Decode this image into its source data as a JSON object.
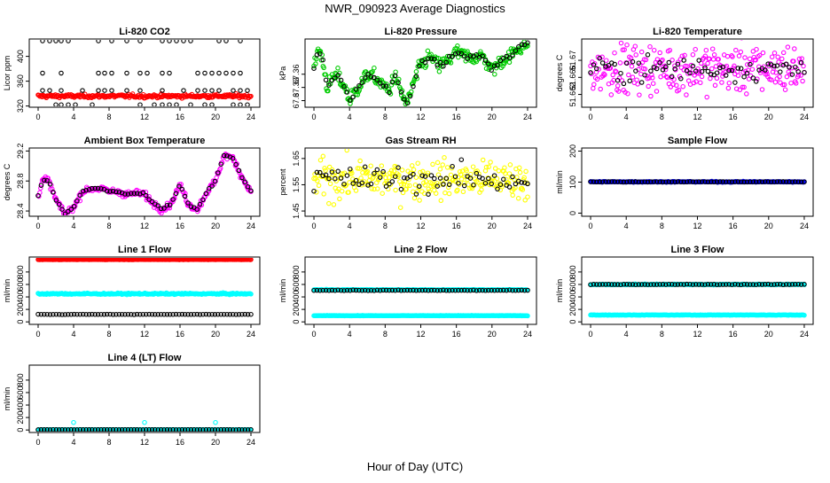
{
  "title": "NWR_090923  Average Diagnostics",
  "xlabel": "Hour of Day (UTC)",
  "x_ticks": [
    0,
    4,
    8,
    12,
    16,
    20,
    24
  ],
  "colors": {
    "black": "#000000",
    "red": "#ff0000",
    "green": "#00cc00",
    "magenta": "#ff00ff",
    "yellow": "#ffff00",
    "blue": "#0000ff",
    "cyan": "#00ffff"
  },
  "chart_data": [
    {
      "type": "scatter",
      "title": "Li-820 CO2",
      "ylabel": "Licor ppm",
      "ylim": [
        318,
        428
      ],
      "yticks": [
        320,
        360,
        400
      ],
      "series": [
        {
          "name": "raw",
          "color": "#ff0000",
          "pattern": "band",
          "center": 336,
          "spread": 2
        },
        {
          "name": "avg-low",
          "color": "#000000",
          "pattern": "grid",
          "levels": [
            322,
            345,
            373,
            425
          ],
          "x": [
            0.5,
            1.3,
            2.0,
            2.6,
            3.4,
            4.2,
            5.0,
            6.1,
            6.8,
            7.5,
            8.3,
            9.1,
            10.0,
            10.7,
            11.5,
            12.3,
            13.1,
            14.0,
            14.8,
            15.6,
            16.4,
            17.2,
            18.0,
            18.8,
            19.6,
            20.4,
            21.2,
            22.0,
            22.8,
            23.6
          ]
        }
      ]
    },
    {
      "type": "scatter",
      "title": "Li-820 Pressure",
      "ylabel": "kPa",
      "ylim": [
        67.285,
        67.44
      ],
      "yticks": [
        67.3,
        67.33,
        67.36
      ],
      "series": [
        {
          "name": "raw",
          "color": "#00cc00",
          "profile": [
            [
              0,
              67.37
            ],
            [
              0.5,
              67.42
            ],
            [
              1,
              67.39
            ],
            [
              1.5,
              67.33
            ],
            [
              2.5,
              67.36
            ],
            [
              3.5,
              67.33
            ],
            [
              4,
              67.3
            ],
            [
              5,
              67.33
            ],
            [
              6,
              67.36
            ],
            [
              7,
              67.35
            ],
            [
              8,
              67.33
            ],
            [
              8.5,
              67.32
            ],
            [
              9,
              67.36
            ],
            [
              10,
              67.31
            ],
            [
              10.5,
              67.29
            ],
            [
              11,
              67.33
            ],
            [
              12,
              67.38
            ],
            [
              13,
              67.4
            ],
            [
              14,
              67.38
            ],
            [
              15,
              67.39
            ],
            [
              16,
              67.41
            ],
            [
              17,
              67.4
            ],
            [
              18,
              67.4
            ],
            [
              19,
              67.4
            ],
            [
              20,
              67.37
            ],
            [
              21,
              67.39
            ],
            [
              22,
              67.4
            ],
            [
              23,
              67.42
            ],
            [
              24,
              67.43
            ]
          ],
          "noise": 0.012
        },
        {
          "name": "avg",
          "color": "#000000",
          "profile": [
            [
              0,
              67.37
            ],
            [
              0.5,
              67.42
            ],
            [
              1,
              67.39
            ],
            [
              1.5,
              67.33
            ],
            [
              2.5,
              67.36
            ],
            [
              3.5,
              67.33
            ],
            [
              4,
              67.3
            ],
            [
              5,
              67.33
            ],
            [
              6,
              67.36
            ],
            [
              7,
              67.35
            ],
            [
              8,
              67.33
            ],
            [
              8.5,
              67.32
            ],
            [
              9,
              67.36
            ],
            [
              10,
              67.31
            ],
            [
              10.5,
              67.29
            ],
            [
              11,
              67.33
            ],
            [
              12,
              67.38
            ],
            [
              13,
              67.4
            ],
            [
              14,
              67.38
            ],
            [
              15,
              67.39
            ],
            [
              16,
              67.41
            ],
            [
              17,
              67.4
            ],
            [
              18,
              67.4
            ],
            [
              19,
              67.4
            ],
            [
              20,
              67.37
            ],
            [
              21,
              67.39
            ],
            [
              22,
              67.4
            ],
            [
              23,
              67.42
            ],
            [
              24,
              67.43
            ]
          ],
          "noise": 0.004
        }
      ]
    },
    {
      "type": "scatter",
      "title": "Li-820 Temperature",
      "ylabel": "degrees C",
      "ylim": [
        51.659,
        51.675
      ],
      "yticks": [
        51.662,
        51.666,
        51.67
      ],
      "series": [
        {
          "name": "raw",
          "color": "#ff00ff",
          "center": 51.668,
          "noise": 0.004
        },
        {
          "name": "avg",
          "color": "#000000",
          "center": 51.668,
          "noise": 0.002
        }
      ]
    },
    {
      "type": "scatter",
      "title": "Ambient Box Temperature",
      "ylabel": "degrees C",
      "ylim": [
        28.33,
        29.24
      ],
      "yticks": [
        28.4,
        28.8,
        29.2
      ],
      "series": [
        {
          "name": "raw",
          "color": "#ff00ff",
          "profile": [
            [
              0,
              28.6
            ],
            [
              0.5,
              28.82
            ],
            [
              1.2,
              28.8
            ],
            [
              2,
              28.55
            ],
            [
              3,
              28.36
            ],
            [
              4,
              28.45
            ],
            [
              5,
              28.66
            ],
            [
              6,
              28.7
            ],
            [
              7,
              28.7
            ],
            [
              8,
              28.66
            ],
            [
              9,
              28.66
            ],
            [
              10,
              28.62
            ],
            [
              11,
              28.64
            ],
            [
              12,
              28.62
            ],
            [
              13,
              28.5
            ],
            [
              14,
              28.42
            ],
            [
              15,
              28.5
            ],
            [
              16,
              28.75
            ],
            [
              17,
              28.48
            ],
            [
              18,
              28.42
            ],
            [
              19,
              28.65
            ],
            [
              20,
              28.8
            ],
            [
              21,
              29.15
            ],
            [
              22,
              29.1
            ],
            [
              23,
              28.85
            ],
            [
              24,
              28.65
            ]
          ],
          "noise": 0.03
        },
        {
          "name": "avg",
          "color": "#000000",
          "profile": [
            [
              0,
              28.6
            ],
            [
              0.5,
              28.82
            ],
            [
              1.2,
              28.8
            ],
            [
              2,
              28.55
            ],
            [
              3,
              28.36
            ],
            [
              4,
              28.45
            ],
            [
              5,
              28.66
            ],
            [
              6,
              28.7
            ],
            [
              7,
              28.7
            ],
            [
              8,
              28.66
            ],
            [
              9,
              28.66
            ],
            [
              10,
              28.62
            ],
            [
              11,
              28.64
            ],
            [
              12,
              28.62
            ],
            [
              13,
              28.5
            ],
            [
              14,
              28.42
            ],
            [
              15,
              28.5
            ],
            [
              16,
              28.75
            ],
            [
              17,
              28.48
            ],
            [
              18,
              28.42
            ],
            [
              19,
              28.65
            ],
            [
              20,
              28.8
            ],
            [
              21,
              29.15
            ],
            [
              22,
              29.1
            ],
            [
              23,
              28.85
            ],
            [
              24,
              28.65
            ]
          ],
          "noise": 0.01
        }
      ]
    },
    {
      "type": "scatter",
      "title": "Gas Stream RH",
      "ylabel": "percent",
      "ylim": [
        1.43,
        1.69
      ],
      "yticks": [
        1.45,
        1.55,
        1.65
      ],
      "series": [
        {
          "name": "raw",
          "color": "#ffff00",
          "center": 1.57,
          "noise": 0.05
        },
        {
          "name": "avg",
          "color": "#000000",
          "center": 1.57,
          "noise": 0.035
        }
      ]
    },
    {
      "type": "scatter",
      "title": "Sample Flow",
      "ylabel": "ml/min",
      "ylim": [
        -10,
        210
      ],
      "yticks": [
        0,
        100,
        200
      ],
      "series": [
        {
          "name": "raw",
          "color": "#0000ff",
          "center": 101,
          "noise": 1
        },
        {
          "name": "avg",
          "color": "#000000",
          "center": 101,
          "noise": 0.5
        }
      ]
    },
    {
      "type": "scatter",
      "title": "Line 1 Flow",
      "ylabel": "ml/min",
      "ylim": [
        -40,
        1040
      ],
      "yticks": [
        0,
        200,
        400,
        600,
        800
      ],
      "series": [
        {
          "name": "cyan",
          "color": "#00ffff",
          "center": 450,
          "noise": 8
        },
        {
          "name": "black",
          "color": "#000000",
          "center": 120,
          "noise": 2
        },
        {
          "name": "red",
          "color": "#ff0000",
          "center": 1000,
          "noise": 2
        }
      ]
    },
    {
      "type": "scatter",
      "title": "Line 2 Flow",
      "ylabel": "ml/min",
      "ylim": [
        -40,
        1040
      ],
      "yticks": [
        0,
        200,
        400,
        600,
        800
      ],
      "series": [
        {
          "name": "cyan-high",
          "color": "#00ffff",
          "center": 515,
          "noise": 4
        },
        {
          "name": "cyan-low",
          "color": "#00ffff",
          "center": 100,
          "noise": 2
        },
        {
          "name": "black",
          "color": "#000000",
          "center": 505,
          "noise": 3
        }
      ]
    },
    {
      "type": "scatter",
      "title": "Line 3 Flow",
      "ylabel": "ml/min",
      "ylim": [
        -40,
        1040
      ],
      "yticks": [
        0,
        200,
        400,
        600,
        800
      ],
      "series": [
        {
          "name": "cyan-high",
          "color": "#00ffff",
          "center": 600,
          "noise": 5
        },
        {
          "name": "cyan-low",
          "color": "#00ffff",
          "center": 110,
          "noise": 2
        },
        {
          "name": "black",
          "color": "#000000",
          "center": 600,
          "noise": 3
        }
      ]
    },
    {
      "type": "scatter",
      "title": "Line 4 (LT) Flow",
      "ylabel": "ml/min",
      "ylim": [
        -40,
        1040
      ],
      "yticks": [
        0,
        200,
        400,
        600,
        800
      ],
      "series": [
        {
          "name": "cyan",
          "color": "#00ffff",
          "center": 5,
          "noise": 2,
          "spikes": [
            [
              4,
              120
            ],
            [
              12,
              120
            ],
            [
              20,
              120
            ]
          ]
        },
        {
          "name": "black",
          "color": "#000000",
          "center": 5,
          "noise": 1
        }
      ]
    }
  ]
}
